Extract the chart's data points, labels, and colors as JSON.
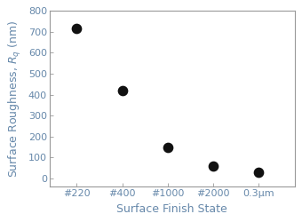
{
  "x_positions": [
    1,
    2,
    3,
    4,
    5
  ],
  "x_labels": [
    "#220",
    "#400",
    "#1000",
    "#2000",
    "0.3μm"
  ],
  "y_values": [
    715,
    420,
    150,
    58,
    28
  ],
  "ylim": [
    -40,
    800
  ],
  "yticks": [
    0,
    100,
    200,
    300,
    400,
    500,
    600,
    700,
    800
  ],
  "xlabel": "Surface Finish State",
  "ylabel": "Surface Roughness, $R_q$ (nm)",
  "marker": "o",
  "marker_color": "#111111",
  "marker_size": 55,
  "bg_color": "#ffffff",
  "label_color": "#6688aa",
  "spine_color": "#999999",
  "axis_label_fontsize": 9,
  "tick_fontsize": 8,
  "xlim": [
    0.4,
    5.8
  ]
}
